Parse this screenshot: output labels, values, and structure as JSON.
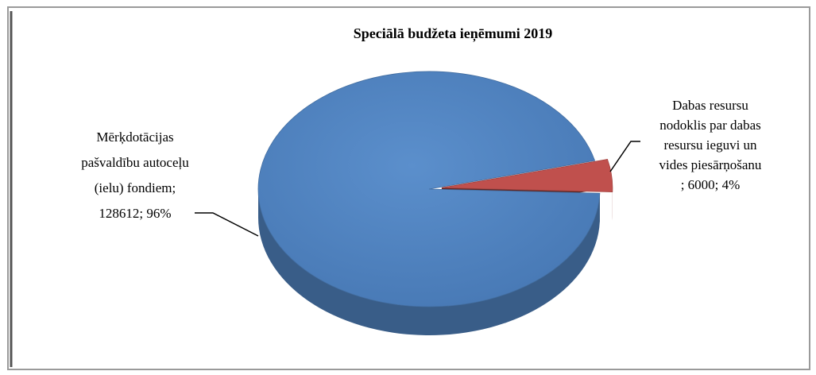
{
  "chart_data": {
    "type": "pie",
    "title": "Speciālā budžeta ieņēmumi 2019",
    "categories": [
      "Mērķdotācijas pašvaldību autoceļu (ielu) fondiem;",
      "Dabas resursu nodoklis par dabas resursu ieguvi un vides piesārņošanu"
    ],
    "values": [
      128612,
      6000
    ],
    "value_labels": [
      "128612; 96%",
      "; 6000; 4%"
    ],
    "colors": [
      "#4f81bd",
      "#c0504d"
    ]
  }
}
